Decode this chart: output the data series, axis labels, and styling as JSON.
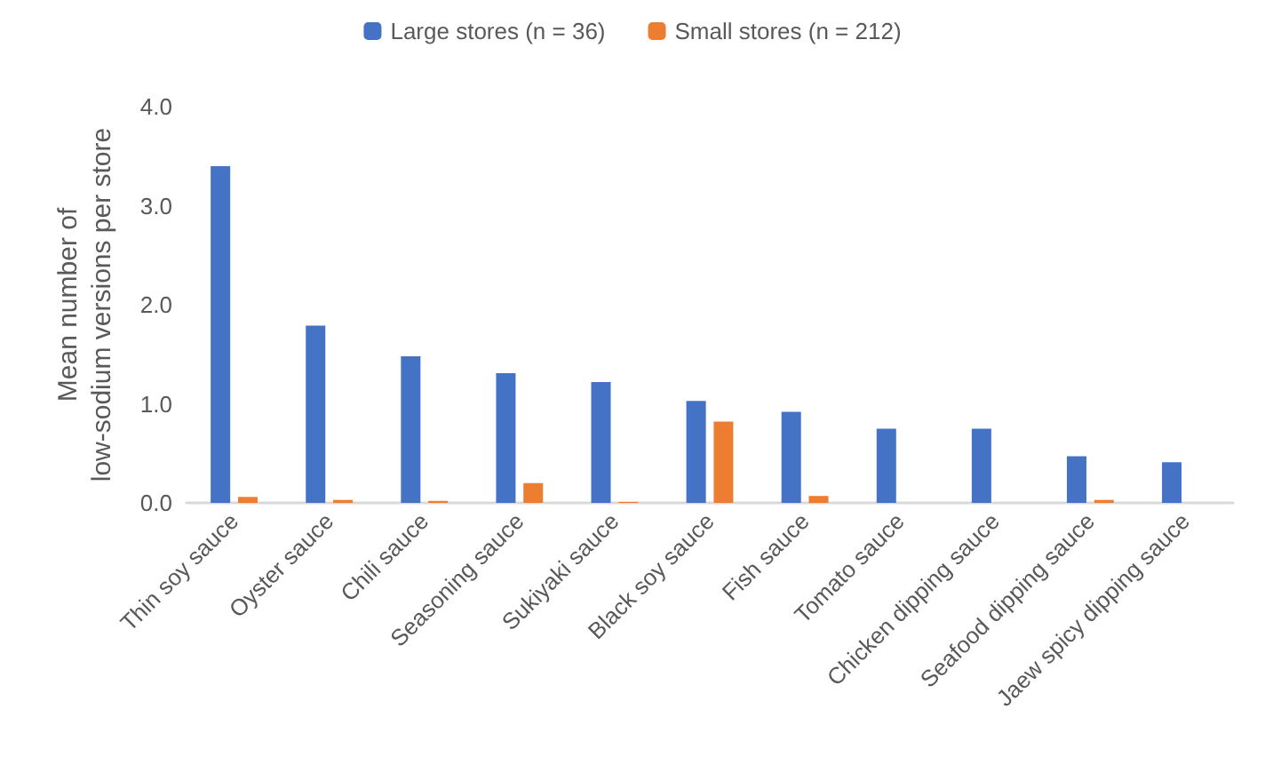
{
  "chart_data": {
    "type": "bar",
    "ylabel": "Mean number of\nlow-sodium versions per store",
    "categories": [
      "Thin soy sauce",
      "Oyster sauce",
      "Chili sauce",
      "Seasoning sauce",
      "Sukiyaki sauce",
      "Black soy sauce",
      "Fish sauce",
      "Tomato sauce",
      "Chicken dipping sauce",
      "Seafood dipping sauce",
      "Jaew spicy dipping sauce"
    ],
    "series": [
      {
        "name": "Large stores (n = 36)",
        "color": "#4472c4",
        "values": [
          3.4,
          1.79,
          1.48,
          1.31,
          1.22,
          1.03,
          0.92,
          0.75,
          0.75,
          0.47,
          0.41
        ]
      },
      {
        "name": "Small stores (n = 212)",
        "color": "#ed7d31",
        "values": [
          0.06,
          0.03,
          0.02,
          0.2,
          0.01,
          0.82,
          0.07,
          0,
          0,
          0.03,
          0
        ]
      }
    ],
    "ylim": [
      0,
      4
    ],
    "yticks": [
      {
        "value": 0,
        "label": "0.0"
      },
      {
        "value": 1,
        "label": "1.0"
      },
      {
        "value": 2,
        "label": "2.0"
      },
      {
        "value": 3,
        "label": "3.0"
      },
      {
        "value": 4,
        "label": "4.0"
      }
    ],
    "grid": false,
    "legend": "top"
  }
}
